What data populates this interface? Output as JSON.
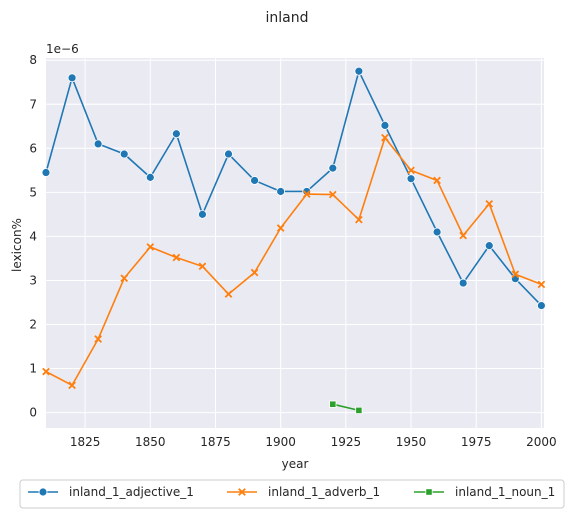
{
  "chart_data": {
    "type": "line",
    "title": "inland",
    "xlabel": "year",
    "ylabel": "lexicon%",
    "y_scale_label": "1e−6",
    "xlim": [
      1810,
      2001
    ],
    "ylim": [
      -0.35,
      8.05
    ],
    "x_ticks": [
      1825,
      1850,
      1875,
      1900,
      1925,
      1950,
      1975,
      2000
    ],
    "y_ticks": [
      0,
      1,
      2,
      3,
      4,
      5,
      6,
      7,
      8
    ],
    "grid": true,
    "legend_position": "bottom",
    "series": [
      {
        "name": "inland_1_adjective_1",
        "color": "#1f77b4",
        "marker": "circle",
        "x": [
          1810,
          1820,
          1830,
          1840,
          1850,
          1860,
          1870,
          1880,
          1890,
          1900,
          1910,
          1920,
          1930,
          1940,
          1950,
          1960,
          1970,
          1980,
          1990,
          2000
        ],
        "y": [
          5.45,
          7.6,
          6.1,
          5.87,
          5.34,
          6.33,
          4.5,
          5.87,
          5.27,
          5.02,
          5.02,
          5.55,
          7.75,
          6.52,
          5.31,
          4.1,
          2.94,
          3.79,
          3.04,
          2.43
        ]
      },
      {
        "name": "inland_1_adverb_1",
        "color": "#ff7f0e",
        "marker": "x",
        "x": [
          1810,
          1820,
          1830,
          1840,
          1850,
          1860,
          1870,
          1880,
          1890,
          1900,
          1910,
          1920,
          1930,
          1940,
          1950,
          1960,
          1970,
          1980,
          1990,
          2000
        ],
        "y": [
          0.93,
          0.62,
          1.67,
          3.05,
          3.76,
          3.52,
          3.32,
          2.69,
          3.18,
          4.19,
          4.96,
          4.95,
          4.38,
          6.24,
          5.5,
          5.27,
          4.02,
          4.74,
          3.14,
          2.91
        ]
      },
      {
        "name": "inland_1_noun_1",
        "color": "#2ca02c",
        "marker": "square",
        "x": [
          1920,
          1930
        ],
        "y": [
          0.19,
          0.05
        ]
      }
    ]
  }
}
